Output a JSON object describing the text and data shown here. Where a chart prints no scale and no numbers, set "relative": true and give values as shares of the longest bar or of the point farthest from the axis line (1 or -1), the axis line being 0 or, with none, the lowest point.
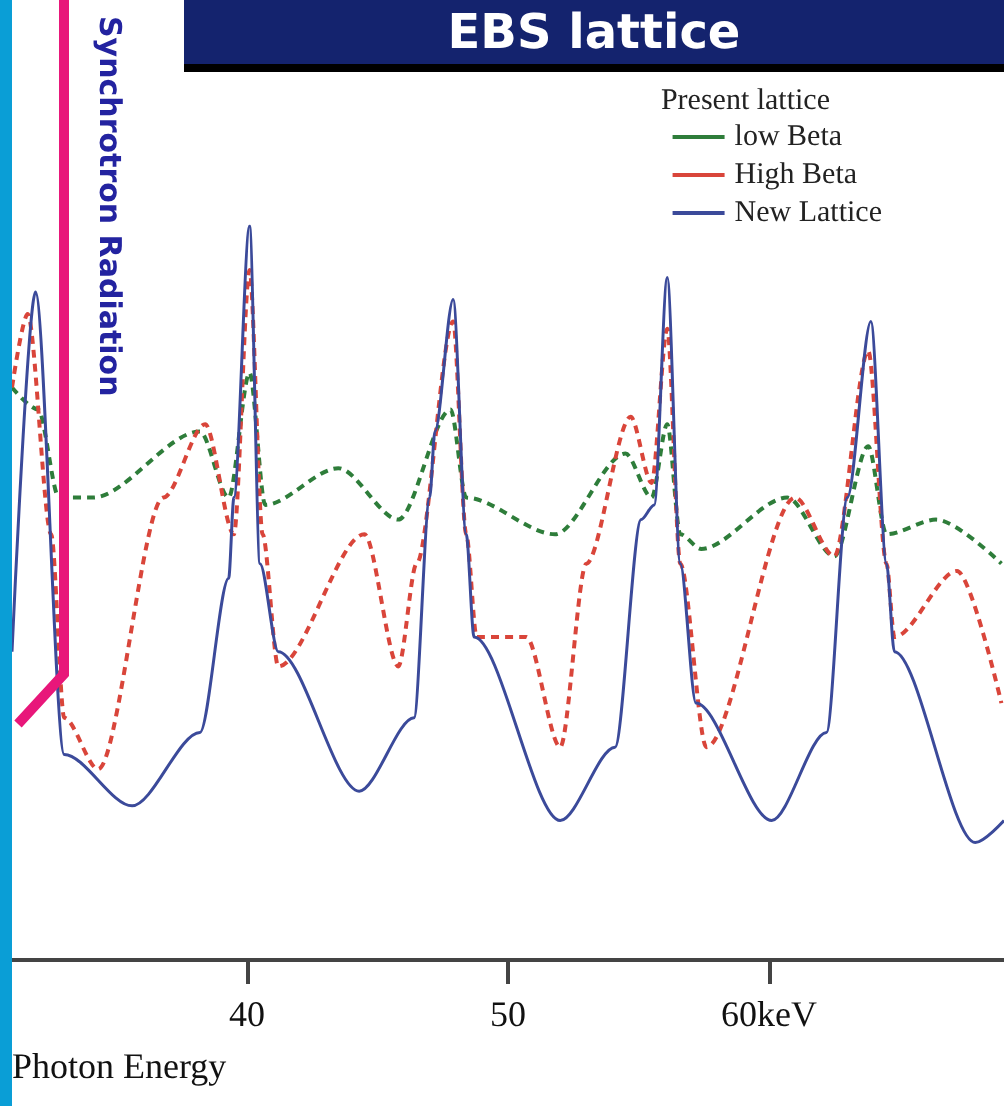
{
  "chart_data": {
    "type": "line",
    "title": "EBS lattice",
    "xlabel": "Photon Energy",
    "legend_title": "Present lattice",
    "annotations": [
      "Synchrotron Radiation"
    ],
    "relative": true,
    "legend": "top right",
    "grid": false,
    "marker": "none",
    "xlim": [
      31,
      69
    ],
    "xticks": [
      40,
      50,
      {
        "value": 60,
        "label": "60keV"
      }
    ],
    "series": [
      {
        "name": "low Beta",
        "color": "#2e7d3a",
        "line_style": "dashed",
        "x": [
          31.0,
          32.0,
          32.8,
          34.1,
          38.2,
          39.3,
          40.1,
          40.7,
          43.5,
          45.8,
          47.8,
          48.4,
          51.8,
          54.5,
          55.5,
          56.1,
          56.6,
          57.4,
          60.7,
          62.5,
          63.8,
          64.5,
          66.4,
          68.9
        ],
        "values": [
          0.78,
          0.75,
          0.63,
          0.63,
          0.72,
          0.63,
          0.8,
          0.62,
          0.67,
          0.6,
          0.75,
          0.63,
          0.58,
          0.69,
          0.63,
          0.73,
          0.58,
          0.56,
          0.63,
          0.55,
          0.7,
          0.58,
          0.6,
          0.54
        ]
      },
      {
        "name": "High Beta",
        "color": "#d9453a",
        "line_style": "dashed",
        "x": [
          31.0,
          31.6,
          32.5,
          33.0,
          34.3,
          36.8,
          38.4,
          39.5,
          40.1,
          40.6,
          41.2,
          44.5,
          45.8,
          46.5,
          47.9,
          48.4,
          48.8,
          50.7,
          52.0,
          53.0,
          54.7,
          55.5,
          56.1,
          56.6,
          57.6,
          61.0,
          62.5,
          63.8,
          64.5,
          64.8,
          67.2,
          68.9
        ],
        "values": [
          0.78,
          0.88,
          0.58,
          0.33,
          0.26,
          0.63,
          0.73,
          0.58,
          0.94,
          0.58,
          0.4,
          0.58,
          0.4,
          0.54,
          0.87,
          0.58,
          0.44,
          0.44,
          0.29,
          0.54,
          0.74,
          0.65,
          0.86,
          0.54,
          0.29,
          0.63,
          0.55,
          0.83,
          0.54,
          0.44,
          0.53,
          0.35
        ]
      },
      {
        "name": "New Lattice",
        "color": "#3b4a9a",
        "line_style": "solid",
        "x": [
          31.0,
          31.9,
          33.0,
          35.6,
          38.2,
          39.3,
          39.5,
          40.1,
          40.5,
          41.2,
          44.3,
          46.4,
          47.0,
          47.2,
          47.9,
          48.4,
          48.7,
          52.0,
          54.1,
          55.1,
          55.6,
          56.1,
          56.6,
          57.2,
          60.1,
          62.2,
          63.0,
          63.9,
          64.5,
          64.8,
          67.9,
          69.0
        ],
        "values": [
          0.42,
          0.91,
          0.28,
          0.21,
          0.31,
          0.52,
          0.63,
          1.0,
          0.54,
          0.42,
          0.23,
          0.33,
          0.63,
          0.72,
          0.9,
          0.58,
          0.44,
          0.19,
          0.29,
          0.6,
          0.62,
          0.93,
          0.54,
          0.35,
          0.19,
          0.31,
          0.63,
          0.87,
          0.54,
          0.42,
          0.16,
          0.19
        ]
      }
    ]
  }
}
